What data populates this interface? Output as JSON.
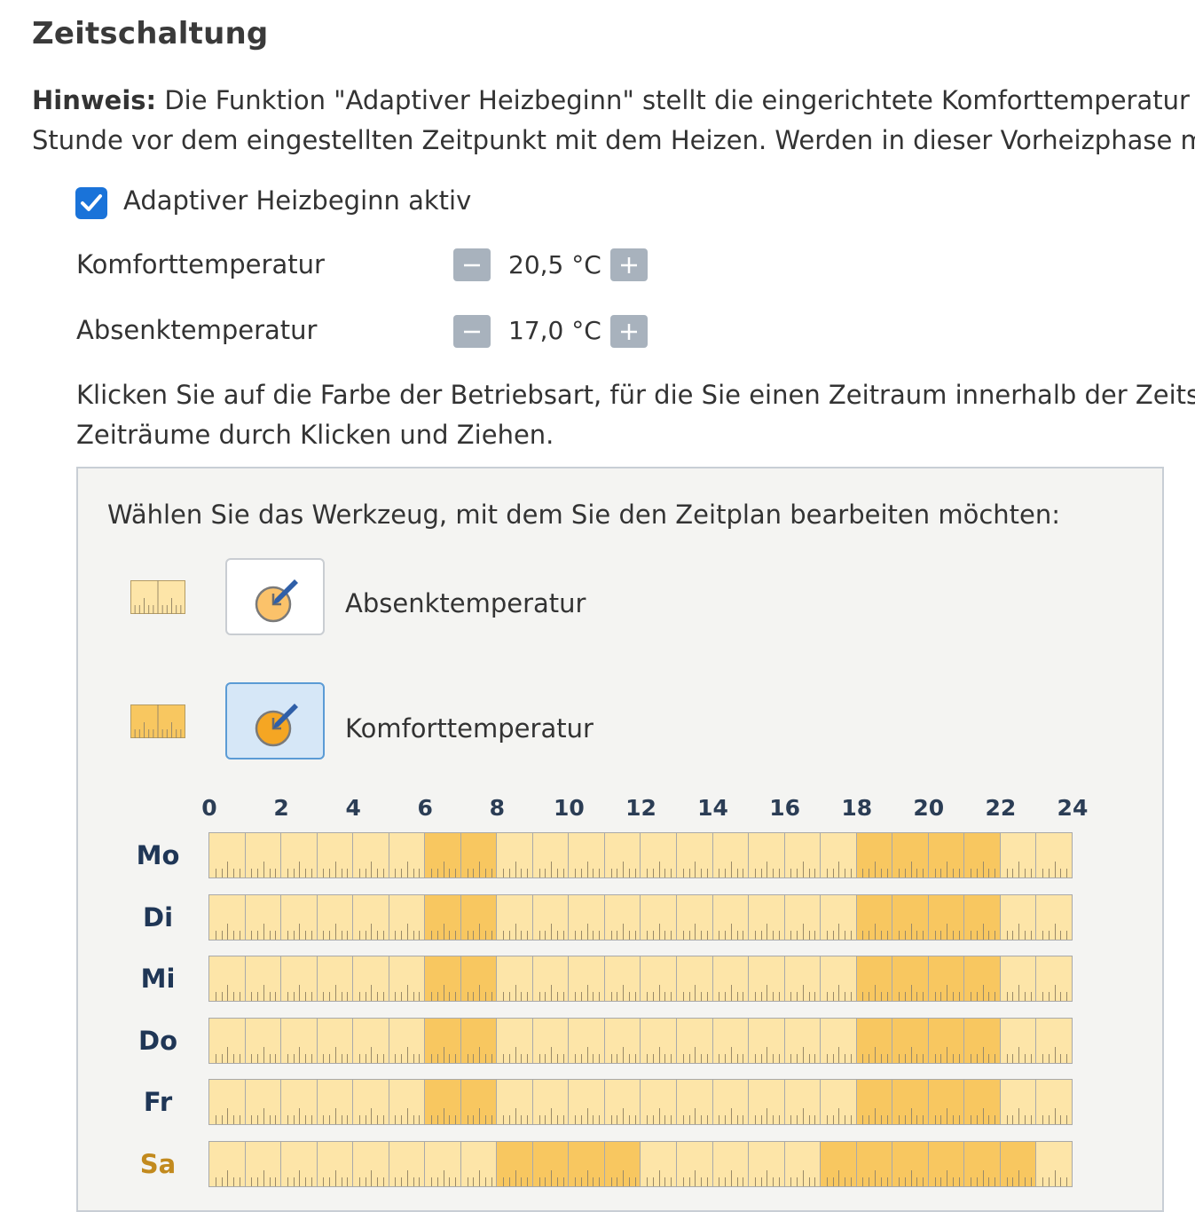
{
  "section_title": "Zeitschaltung",
  "note": {
    "label": "Hinweis:",
    "line1": " Die Funktion \"Adaptiver Heizbeginn\" stellt die eingerichtete Komforttemperatur zur",
    "line2": "Stunde vor dem eingestellten Zeitpunkt mit dem Heizen. Werden in dieser Vorheizphase man"
  },
  "adaptive": {
    "label": "Adaptiver Heizbeginn aktiv",
    "checked": true
  },
  "temperatures": [
    {
      "label": "Komforttemperatur",
      "value": "20,5 °C"
    },
    {
      "label": "Absenktemperatur",
      "value": "17,0 °C"
    }
  ],
  "instructions": {
    "line1": "Klicken Sie auf die Farbe der Betriebsart, für die Sie einen Zeitraum innerhalb der Zeitsteu",
    "line2": "Zeiträume durch Klicken und Ziehen."
  },
  "tool_panel": {
    "title": "Wählen Sie das Werkzeug, mit dem Sie den Zeitplan bearbeiten möchten:",
    "tools": [
      {
        "label": "Absenktemperatur",
        "swatch_color": "#fde5a8",
        "active": false,
        "icon": "pencil-clock-icon"
      },
      {
        "label": "Komforttemperatur",
        "swatch_color": "#f8c760",
        "active": true,
        "icon": "pencil-clock-icon"
      }
    ]
  },
  "schedule": {
    "hour_labels": [
      "0",
      "2",
      "4",
      "6",
      "8",
      "10",
      "12",
      "14",
      "16",
      "18",
      "20",
      "22",
      "24"
    ],
    "colors": {
      "absenk": "#fde5a8",
      "komfort": "#f8c760"
    },
    "days": [
      {
        "label": "Mo",
        "weekend": false,
        "komfort": [
          [
            6,
            8
          ],
          [
            18,
            22
          ]
        ]
      },
      {
        "label": "Di",
        "weekend": false,
        "komfort": [
          [
            6,
            8
          ],
          [
            18,
            22
          ]
        ]
      },
      {
        "label": "Mi",
        "weekend": false,
        "komfort": [
          [
            6,
            8
          ],
          [
            18,
            22
          ]
        ]
      },
      {
        "label": "Do",
        "weekend": false,
        "komfort": [
          [
            6,
            8
          ],
          [
            18,
            22
          ]
        ]
      },
      {
        "label": "Fr",
        "weekend": false,
        "komfort": [
          [
            6,
            8
          ],
          [
            18,
            22
          ]
        ]
      },
      {
        "label": "Sa",
        "weekend": true,
        "komfort": [
          [
            8,
            12
          ],
          [
            17,
            23
          ]
        ]
      }
    ]
  }
}
